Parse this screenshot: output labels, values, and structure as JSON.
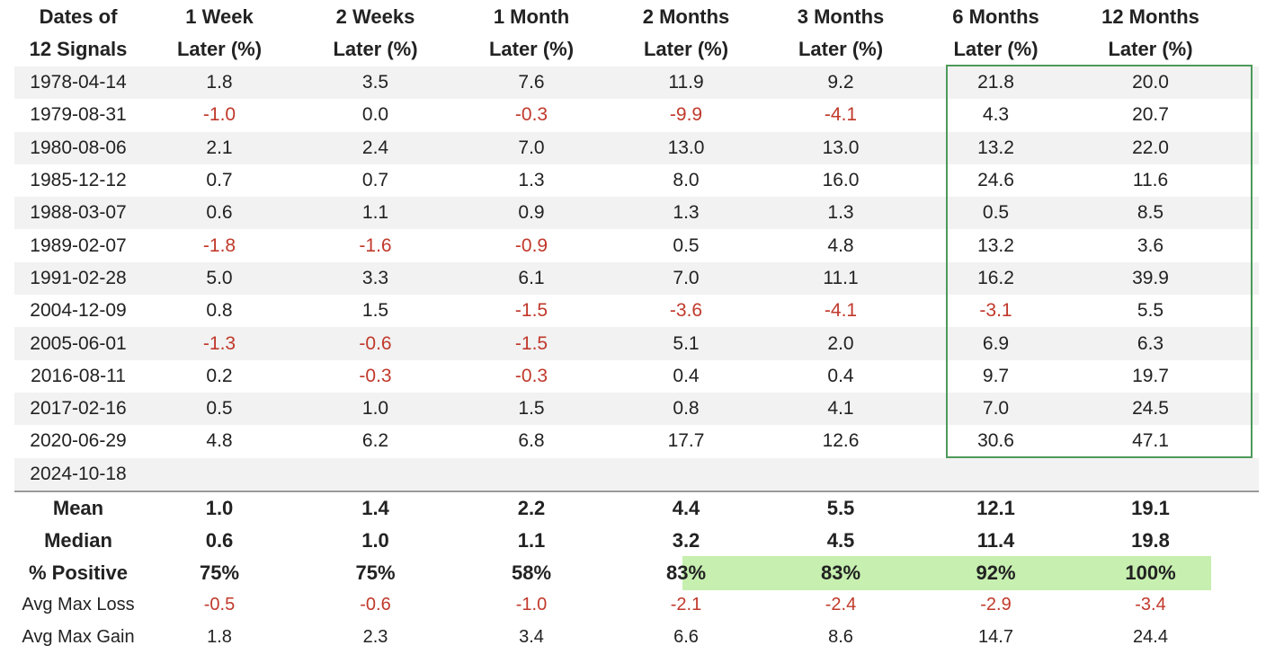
{
  "headers": [
    [
      "Dates of",
      "12 Signals"
    ],
    [
      "1 Week",
      "Later (%)"
    ],
    [
      "2 Weeks",
      "Later (%)"
    ],
    [
      "1 Month",
      "Later (%)"
    ],
    [
      "2 Months",
      "Later (%)"
    ],
    [
      "3 Months",
      "Later (%)"
    ],
    [
      "6 Months",
      "Later (%)"
    ],
    [
      "12 Months",
      "Later (%)"
    ]
  ],
  "rows": [
    [
      "1978-04-14",
      "1.8",
      "3.5",
      "7.6",
      "11.9",
      "9.2",
      "21.8",
      "20.0"
    ],
    [
      "1979-08-31",
      "-1.0",
      "0.0",
      "-0.3",
      "-9.9",
      "-4.1",
      "4.3",
      "20.7"
    ],
    [
      "1980-08-06",
      "2.1",
      "2.4",
      "7.0",
      "13.0",
      "13.0",
      "13.2",
      "22.0"
    ],
    [
      "1985-12-12",
      "0.7",
      "0.7",
      "1.3",
      "8.0",
      "16.0",
      "24.6",
      "11.6"
    ],
    [
      "1988-03-07",
      "0.6",
      "1.1",
      "0.9",
      "1.3",
      "1.3",
      "0.5",
      "8.5"
    ],
    [
      "1989-02-07",
      "-1.8",
      "-1.6",
      "-0.9",
      "0.5",
      "4.8",
      "13.2",
      "3.6"
    ],
    [
      "1991-02-28",
      "5.0",
      "3.3",
      "6.1",
      "7.0",
      "11.1",
      "16.2",
      "39.9"
    ],
    [
      "2004-12-09",
      "0.8",
      "1.5",
      "-1.5",
      "-3.6",
      "-4.1",
      "-3.1",
      "5.5"
    ],
    [
      "2005-06-01",
      "-1.3",
      "-0.6",
      "-1.5",
      "5.1",
      "2.0",
      "6.9",
      "6.3"
    ],
    [
      "2016-08-11",
      "0.2",
      "-0.3",
      "-0.3",
      "0.4",
      "0.4",
      "9.7",
      "19.7"
    ],
    [
      "2017-02-16",
      "0.5",
      "1.0",
      "1.5",
      "0.8",
      "4.1",
      "7.0",
      "24.5"
    ],
    [
      "2020-06-29",
      "4.8",
      "6.2",
      "6.8",
      "17.7",
      "12.6",
      "30.6",
      "47.1"
    ],
    [
      "2024-10-18",
      "",
      "",
      "",
      "",
      "",
      "",
      ""
    ]
  ],
  "summary": [
    [
      "Mean",
      "1.0",
      "1.4",
      "2.2",
      "4.4",
      "5.5",
      "12.1",
      "19.1"
    ],
    [
      "Median",
      "0.6",
      "1.0",
      "1.1",
      "3.2",
      "4.5",
      "11.4",
      "19.8"
    ],
    [
      "% Positive",
      "75%",
      "75%",
      "58%",
      "83%",
      "83%",
      "92%",
      "100%"
    ],
    [
      "Avg Max Loss",
      "-0.5",
      "-0.6",
      "-1.0",
      "-2.1",
      "-2.4",
      "-2.9",
      "-3.4"
    ],
    [
      "Avg Max Gain",
      "1.8",
      "2.3",
      "3.4",
      "6.6",
      "8.6",
      "14.7",
      "24.4"
    ]
  ],
  "colors": {
    "negative": "#c0392b",
    "highlight_fill": "#c6efb0",
    "highlight_border": "#4e9a5a",
    "row_shade": "#f2f2f2"
  }
}
